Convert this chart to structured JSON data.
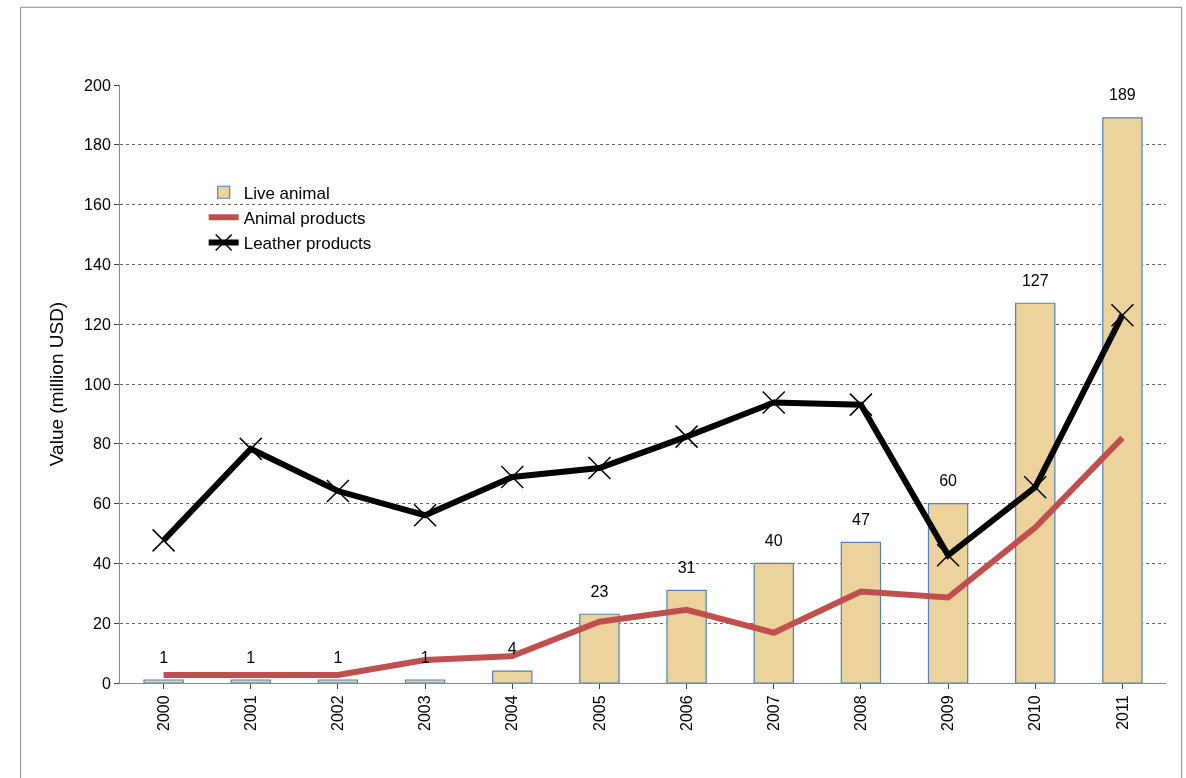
{
  "chart_data": {
    "type": "bar",
    "ylabel": "Value (million USD)",
    "categories": [
      "2000",
      "2001",
      "2002",
      "2003",
      "2004",
      "2005",
      "2006",
      "2007",
      "2008",
      "2009",
      "2010",
      "2011"
    ],
    "series": [
      {
        "name": "Live animal",
        "color": "#ecd39b",
        "values": [
          1,
          1,
          1,
          1,
          4,
          23,
          31,
          40,
          47,
          60,
          127,
          189
        ],
        "data_labels": true
      },
      {
        "name": "Animal products",
        "type": "line",
        "color": "#c0504d",
        "values": [
          2.7,
          2.7,
          2.7,
          7.7,
          9,
          20.5,
          24.5,
          16.8,
          30.6,
          28.6,
          52,
          82
        ],
        "marker": "none"
      },
      {
        "name": "Leather products",
        "type": "line",
        "color": "#000000",
        "values": [
          47.7,
          78.3,
          64.2,
          56.1,
          68.9,
          71.9,
          82.4,
          93.8,
          93.1,
          42.7,
          65.5,
          123
        ],
        "marker": "cross"
      }
    ],
    "ylim": [
      0,
      200
    ],
    "yticks": [
      0,
      20,
      40,
      60,
      80,
      100,
      120,
      140,
      160,
      180,
      200
    ],
    "grid": "y",
    "legend": "top left"
  }
}
